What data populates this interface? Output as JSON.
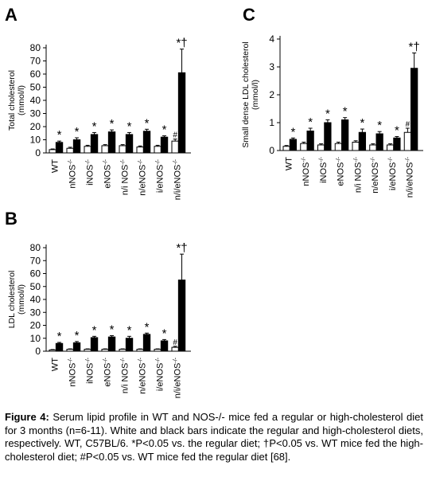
{
  "panels": [
    {
      "letter": "A",
      "ylabel_lines": [
        "Total cholesterol",
        "(mmol/l)"
      ],
      "chart_data": {
        "type": "bar",
        "categories": [
          "WT",
          "nNOS",
          "iNOS",
          "eNOS",
          "n/i NOS",
          "n/eNOS",
          "i/eNOS",
          "n/i/eNOS"
        ],
        "category_superscripts": [
          "",
          "-/-",
          "-/-",
          "-/-",
          "-/-",
          "-/-",
          "-/-",
          "-/-"
        ],
        "series": [
          {
            "name": "Regular diet",
            "color": "#ffffff",
            "values": [
              2.5,
              3.5,
              5,
              5.5,
              5.5,
              4.5,
              5,
              9
            ],
            "errors": [
              0.5,
              0.8,
              0.8,
              0.8,
              0.8,
              0.8,
              0.8,
              1.5
            ]
          },
          {
            "name": "High-cholesterol diet",
            "color": "#000000",
            "values": [
              8,
              10,
              14,
              16,
              14,
              16.5,
              12,
              61
            ],
            "errors": [
              1,
              1.5,
              1.5,
              1.5,
              1.5,
              1.5,
              1,
              18
            ]
          }
        ],
        "ylim": [
          0,
          80
        ],
        "yticks": [
          0,
          10,
          20,
          30,
          40,
          50,
          60,
          70,
          80
        ],
        "annotations_regular": [
          "",
          "",
          "",
          "",
          "",
          "",
          "",
          "#"
        ],
        "annotations_high": [
          "*",
          "*",
          "*",
          "*",
          "*",
          "*",
          "*",
          "*†"
        ]
      }
    },
    {
      "letter": "B",
      "ylabel_lines": [
        "LDL cholesterol",
        "(mmol/l)"
      ],
      "chart_data": {
        "type": "bar",
        "categories": [
          "WT",
          "nNOS",
          "iNOS",
          "eNOS",
          "n/i NOS",
          "n/eNOS",
          "i/eNOS",
          "n/i/eNOS"
        ],
        "category_superscripts": [
          "",
          "-/-",
          "-/-",
          "-/-",
          "-/-",
          "-/-",
          "-/-",
          "-/-"
        ],
        "series": [
          {
            "name": "Regular diet",
            "color": "#ffffff",
            "values": [
              1,
              1.5,
              1.5,
              1.5,
              1.5,
              1.5,
              1.5,
              3
            ],
            "errors": [
              0.3,
              0.3,
              0.3,
              0.3,
              0.3,
              0.3,
              0.3,
              0.8
            ]
          },
          {
            "name": "High-cholesterol diet",
            "color": "#000000",
            "values": [
              6,
              6.5,
              10.5,
              11,
              10,
              13,
              8,
              55
            ],
            "errors": [
              0.8,
              1,
              1,
              1,
              1.5,
              1,
              1,
              20
            ]
          }
        ],
        "ylim": [
          0,
          80
        ],
        "yticks": [
          0,
          10,
          20,
          30,
          40,
          50,
          60,
          70,
          80
        ],
        "annotations_regular": [
          "",
          "",
          "",
          "",
          "",
          "",
          "",
          "#"
        ],
        "annotations_high": [
          "*",
          "*",
          "*",
          "*",
          "*",
          "*",
          "*",
          "*†"
        ]
      }
    },
    {
      "letter": "C",
      "ylabel_lines": [
        "Small dense LDL cholesterol",
        "(mmol/l)"
      ],
      "chart_data": {
        "type": "bar",
        "categories": [
          "WT",
          "nNOS",
          "iNOS",
          "eNOS",
          "n/i NOS",
          "n/eNOS",
          "i/eNOS",
          "n/i/eNOS"
        ],
        "category_superscripts": [
          "",
          "-/-",
          "-/-",
          "-/-",
          "-/-",
          "-/-",
          "-/-",
          "-/-"
        ],
        "series": [
          {
            "name": "Regular diet",
            "color": "#ffffff",
            "values": [
              0.15,
              0.25,
              0.2,
              0.25,
              0.3,
              0.2,
              0.2,
              0.65
            ],
            "errors": [
              0.03,
              0.05,
              0.04,
              0.05,
              0.05,
              0.04,
              0.04,
              0.15
            ]
          },
          {
            "name": "High-cholesterol diet",
            "color": "#000000",
            "values": [
              0.4,
              0.7,
              1.0,
              1.1,
              0.65,
              0.6,
              0.45,
              2.95
            ],
            "errors": [
              0.05,
              0.1,
              0.1,
              0.08,
              0.12,
              0.08,
              0.05,
              0.55
            ]
          }
        ],
        "ylim": [
          0,
          4
        ],
        "yticks": [
          0,
          1,
          2,
          3,
          4
        ],
        "annotations_regular": [
          "",
          "",
          "",
          "",
          "",
          "",
          "",
          "#"
        ],
        "annotations_high": [
          "*",
          "*",
          "*",
          "*",
          "*",
          "*",
          "*",
          "*†"
        ]
      }
    }
  ],
  "caption": {
    "label": "Figure 4:",
    "text": "Serum lipid profile in WT and NOS-/- mice fed a regular or high-cholesterol diet for 3 months (n=6-11). White and black bars indicate the regular and high-cholesterol diets, respectively. WT, C57BL/6. *P<0.05 vs. the regular diet; †P<0.05 vs. WT mice fed the high-cholesterol diet; #P<0.05 vs. WT mice fed the regular diet [68]."
  }
}
